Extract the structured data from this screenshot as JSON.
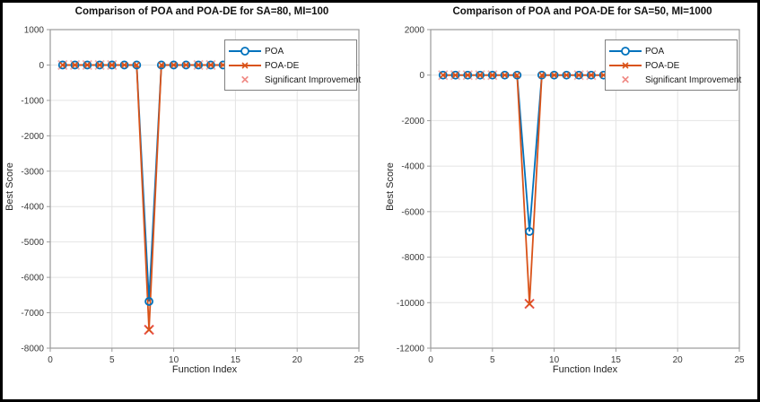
{
  "figure": {
    "background": "#ffffff",
    "border_color": "#000000"
  },
  "chart_data": [
    {
      "type": "line",
      "title": "Comparison of POA and POA-DE for SA=80, MI=100",
      "xlabel": "Function Index",
      "ylabel": "Best Score",
      "xlim": [
        0,
        25
      ],
      "ylim": [
        -8000,
        1000
      ],
      "xticks": [
        0,
        5,
        10,
        15,
        20,
        25
      ],
      "yticks": [
        1000,
        0,
        -1000,
        -2000,
        -3000,
        -4000,
        -5000,
        -6000,
        -7000,
        -8000
      ],
      "grid": true,
      "legend": {
        "position": "upper-right",
        "entries": [
          "POA",
          "POA-DE",
          "Significant Improvement"
        ]
      },
      "x": [
        1,
        2,
        3,
        4,
        5,
        6,
        7,
        8,
        9,
        10,
        11,
        12,
        13,
        14
      ],
      "series": [
        {
          "name": "POA",
          "color": "#0072BD",
          "marker": "circle",
          "values": [
            0,
            0,
            0,
            0,
            0,
            0,
            0,
            -6680,
            0,
            0,
            0,
            0,
            0,
            0
          ]
        },
        {
          "name": "POA-DE",
          "color": "#D95319",
          "marker": "x",
          "values": [
            0,
            0,
            0,
            0,
            0,
            0,
            0,
            -7480,
            0,
            0,
            0,
            0,
            0,
            0
          ]
        }
      ],
      "significant_improvement": {
        "label": "Significant Improvement",
        "color": "#E8483F",
        "marker": "X",
        "points": [
          {
            "x": 1,
            "y": 0
          },
          {
            "x": 2,
            "y": 0
          },
          {
            "x": 3,
            "y": 0
          },
          {
            "x": 4,
            "y": 0
          },
          {
            "x": 5,
            "y": 0
          },
          {
            "x": 8,
            "y": -7480,
            "emphasis": true
          },
          {
            "x": 12,
            "y": 0
          },
          {
            "x": 13,
            "y": 0
          }
        ]
      }
    },
    {
      "type": "line",
      "title": "Comparison of POA and POA-DE for SA=50, MI=1000",
      "xlabel": "Function Index",
      "ylabel": "Best Score",
      "xlim": [
        0,
        25
      ],
      "ylim": [
        -12000,
        2000
      ],
      "xticks": [
        0,
        5,
        10,
        15,
        20,
        25
      ],
      "yticks": [
        2000,
        0,
        -2000,
        -4000,
        -6000,
        -8000,
        -10000,
        -12000
      ],
      "grid": true,
      "legend": {
        "position": "upper-right",
        "entries": [
          "POA",
          "POA-DE",
          "Significant Improvement"
        ]
      },
      "x": [
        1,
        2,
        3,
        4,
        5,
        6,
        7,
        8,
        9,
        10,
        11,
        12,
        13,
        14
      ],
      "series": [
        {
          "name": "POA",
          "color": "#0072BD",
          "marker": "circle",
          "values": [
            0,
            0,
            0,
            0,
            0,
            0,
            0,
            -6870,
            0,
            0,
            0,
            0,
            0,
            0
          ]
        },
        {
          "name": "POA-DE",
          "color": "#D95319",
          "marker": "x",
          "values": [
            0,
            0,
            0,
            0,
            0,
            0,
            0,
            -10050,
            0,
            0,
            0,
            0,
            0,
            0
          ]
        }
      ],
      "significant_improvement": {
        "label": "Significant Improvement",
        "color": "#E8483F",
        "marker": "X",
        "points": [
          {
            "x": 1,
            "y": 0
          },
          {
            "x": 2,
            "y": 0
          },
          {
            "x": 3,
            "y": 0
          },
          {
            "x": 4,
            "y": 0
          },
          {
            "x": 5,
            "y": 0
          },
          {
            "x": 8,
            "y": -10050,
            "emphasis": true
          },
          {
            "x": 12,
            "y": 0
          },
          {
            "x": 13,
            "y": 0
          }
        ]
      }
    }
  ]
}
